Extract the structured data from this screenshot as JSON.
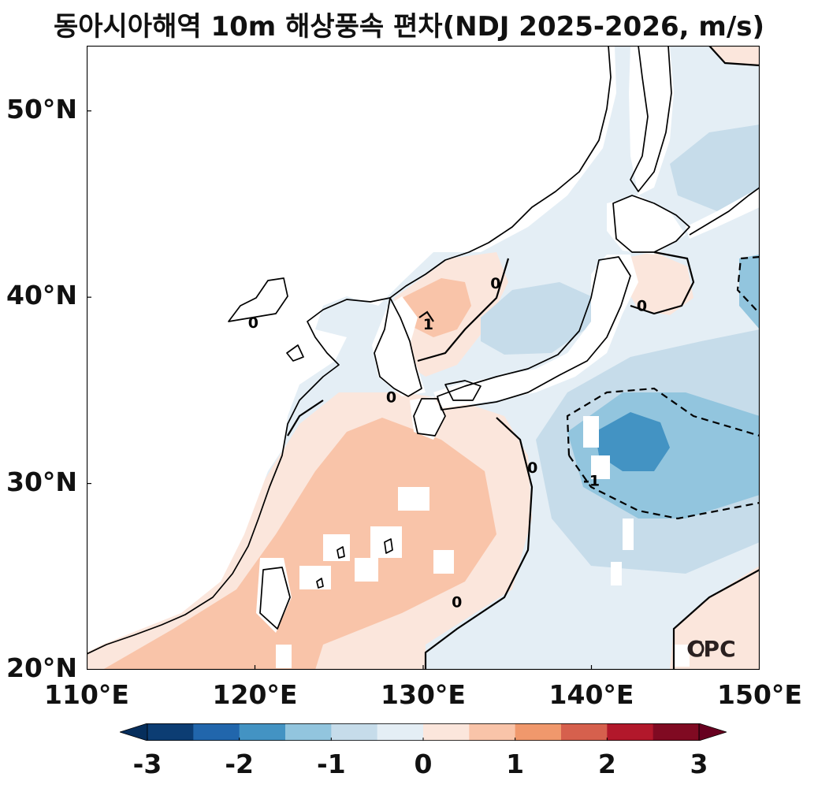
{
  "title": "동아시아해역 10m 해상풍속 편차(NDJ 2025-2026, m/s)",
  "map": {
    "lon_range": [
      110,
      150
    ],
    "lat_range": [
      20,
      53.5
    ],
    "y_ticks": [
      {
        "lat": 50,
        "label": "50°N"
      },
      {
        "lat": 40,
        "label": "40°N"
      },
      {
        "lat": 30,
        "label": "30°N"
      },
      {
        "lat": 20,
        "label": "20°N"
      }
    ],
    "x_ticks": [
      {
        "lon": 110,
        "label": "110°E"
      },
      {
        "lon": 120,
        "label": "120°E"
      },
      {
        "lon": 130,
        "label": "130°E"
      },
      {
        "lon": 140,
        "label": "140°E"
      },
      {
        "lon": 150,
        "label": "150°E"
      }
    ],
    "contour_labels": [
      {
        "text": "0",
        "lon": 119.9,
        "lat": 38.6
      },
      {
        "text": "0",
        "lon": 136.5,
        "lat": 30.8
      },
      {
        "text": "0",
        "lon": 128.1,
        "lat": 34.6
      },
      {
        "text": "0",
        "lon": 134.3,
        "lat": 40.7
      },
      {
        "text": "0",
        "lon": 143.0,
        "lat": 39.5
      },
      {
        "text": "0",
        "lon": 132.0,
        "lat": 23.6
      },
      {
        "text": "-1",
        "lon": 140.0,
        "lat": 30.1
      },
      {
        "text": "1",
        "lon": 130.3,
        "lat": 38.5
      }
    ],
    "logo": "CPC",
    "colors": {
      "coast": "#000000",
      "mask": "#ffffff"
    }
  },
  "colorbar": {
    "levels": [
      -3,
      -2.5,
      -2,
      -1.5,
      -1,
      -0.5,
      0,
      0.5,
      1,
      1.5,
      2,
      2.5,
      3
    ],
    "colors": [
      "#0c3d73",
      "#2166ac",
      "#4393c3",
      "#92c5de",
      "#c6dcea",
      "#e4eef5",
      "#fbe6dc",
      "#f9c4a9",
      "#f0986c",
      "#d6604d",
      "#b2182b",
      "#800a22"
    ],
    "under_color": "#062e5c",
    "over_color": "#67001f",
    "labels": [
      {
        "value": -3,
        "text": "-3"
      },
      {
        "value": -2,
        "text": "-2"
      },
      {
        "value": -1,
        "text": "-1"
      },
      {
        "value": 0,
        "text": "0"
      },
      {
        "value": 1,
        "text": "1"
      },
      {
        "value": 2,
        "text": "2"
      },
      {
        "value": 3,
        "text": "3"
      }
    ]
  }
}
